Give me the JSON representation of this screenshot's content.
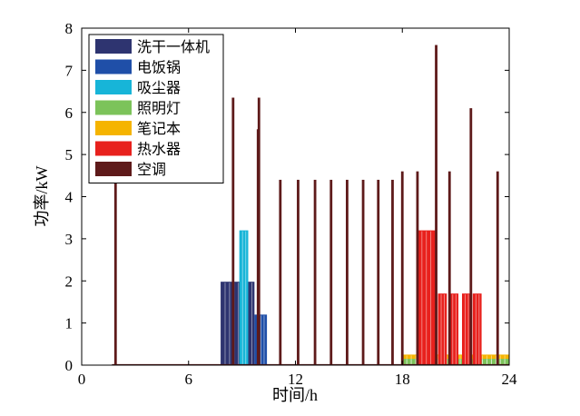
{
  "chart_data": {
    "type": "bar",
    "title": "",
    "xlabel": "时间/h",
    "ylabel": "功率/kW",
    "xlim": [
      0,
      24
    ],
    "ylim": [
      0,
      8
    ],
    "xticks": [
      0,
      6,
      12,
      18,
      24
    ],
    "yticks": [
      0,
      1,
      2,
      3,
      4,
      5,
      6,
      7,
      8
    ],
    "grid": false,
    "legend_position": "top-left",
    "series": [
      {
        "name": "洗干一体机",
        "color": "#2e3470",
        "segments": [
          [
            7.8,
            9.7,
            0,
            1.98
          ]
        ]
      },
      {
        "name": "电饭锅",
        "color": "#1f4fa8",
        "segments": [
          [
            9.7,
            10.4,
            0,
            1.2
          ]
        ]
      },
      {
        "name": "吸尘器",
        "color": "#17b5d8",
        "segments": [
          [
            8.85,
            9.35,
            0,
            3.2
          ]
        ]
      },
      {
        "name": "照明灯",
        "color": "#7cc35a",
        "segments": [
          [
            18.0,
            24.0,
            0,
            0.15
          ]
        ]
      },
      {
        "name": "笔记本",
        "color": "#f5b400",
        "segments": [
          [
            18.0,
            24.0,
            0.15,
            0.25
          ]
        ]
      },
      {
        "name": "热水器",
        "color": "#e8211d",
        "segments": [
          [
            18.85,
            19.9,
            0,
            3.2
          ],
          [
            20.0,
            20.5,
            0,
            1.7
          ],
          [
            20.65,
            21.15,
            0,
            1.7
          ],
          [
            21.35,
            21.85,
            0,
            1.7
          ],
          [
            21.95,
            22.45,
            0,
            1.7
          ]
        ]
      },
      {
        "name": "空调",
        "color": "#5e1a1a",
        "spikes": [
          [
            1.9,
            4.4
          ],
          [
            8.5,
            6.35
          ],
          [
            9.95,
            6.35
          ],
          [
            9.9,
            5.6
          ],
          [
            11.15,
            4.4
          ],
          [
            12.15,
            4.4
          ],
          [
            13.1,
            4.4
          ],
          [
            14.0,
            4.4
          ],
          [
            14.9,
            4.4
          ],
          [
            15.8,
            4.4
          ],
          [
            16.65,
            4.4
          ],
          [
            17.45,
            4.4
          ],
          [
            18.0,
            4.6
          ],
          [
            18.85,
            4.6
          ],
          [
            19.9,
            7.6
          ],
          [
            20.65,
            4.6
          ],
          [
            21.85,
            6.1
          ],
          [
            23.35,
            4.6
          ]
        ]
      }
    ]
  }
}
